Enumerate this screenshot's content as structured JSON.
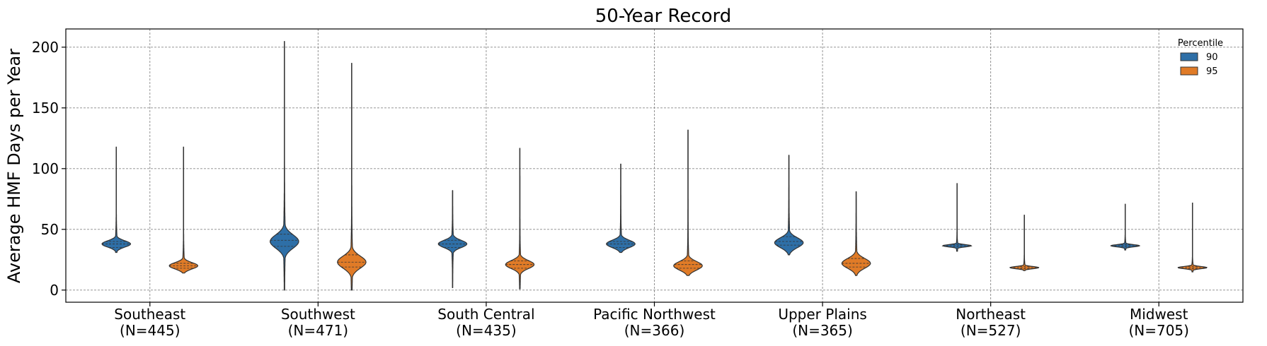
{
  "chart_data": {
    "type": "violin",
    "title": "50-Year Record",
    "xlabel": "",
    "ylabel": "Average HMF Days per Year",
    "ylim": [
      -10,
      215
    ],
    "yticks": [
      0,
      50,
      100,
      150,
      200
    ],
    "grid": true,
    "legend": {
      "title": "Percentile",
      "placement": "top-right",
      "entries": [
        {
          "label": "90",
          "color": "#2e6fa7"
        },
        {
          "label": "95",
          "color": "#e07b27"
        }
      ]
    },
    "categories": [
      {
        "line1": "Southeast",
        "line2": "(N=445)"
      },
      {
        "line1": "Southwest",
        "line2": "(N=471)"
      },
      {
        "line1": "South Central",
        "line2": "(N=435)"
      },
      {
        "line1": "Pacific Northwest",
        "line2": "(N=366)"
      },
      {
        "line1": "Upper Plains",
        "line2": "(N=365)"
      },
      {
        "line1": "Northeast",
        "line2": "(N=527)"
      },
      {
        "line1": "Midwest",
        "line2": "(N=705)"
      }
    ],
    "series": [
      {
        "name": "90",
        "color": "#2e6fa7",
        "violins": [
          {
            "min": 31,
            "max": 118,
            "q1": 35,
            "median": 38,
            "q3": 40,
            "peak": 38,
            "spread": 2.6
          },
          {
            "min": 0,
            "max": 205,
            "q1": 36,
            "median": 41,
            "q3": 46,
            "peak": 40,
            "spread": 5.5
          },
          {
            "min": 2,
            "max": 82,
            "q1": 35,
            "median": 38,
            "q3": 41,
            "peak": 38,
            "spread": 3.0
          },
          {
            "min": 31,
            "max": 104,
            "q1": 35,
            "median": 38,
            "q3": 40,
            "peak": 38,
            "spread": 3.0
          },
          {
            "min": 29,
            "max": 111,
            "q1": 37,
            "median": 40,
            "q3": 44,
            "peak": 39,
            "spread": 4.0
          },
          {
            "min": 32,
            "max": 88,
            "q1": 35.5,
            "median": 36.5,
            "q3": 37.5,
            "peak": 36.5,
            "spread": 0.9
          },
          {
            "min": 33,
            "max": 71,
            "q1": 35.5,
            "median": 36.5,
            "q3": 37.5,
            "peak": 36.5,
            "spread": 0.9
          }
        ]
      },
      {
        "name": "95",
        "color": "#e07b27",
        "violins": [
          {
            "min": 14,
            "max": 118,
            "q1": 18,
            "median": 20,
            "q3": 22,
            "peak": 20,
            "spread": 2.6
          },
          {
            "min": 0,
            "max": 187,
            "q1": 19,
            "median": 23,
            "q3": 29,
            "peak": 23,
            "spread": 5.0
          },
          {
            "min": 1,
            "max": 117,
            "q1": 18,
            "median": 21,
            "q3": 24,
            "peak": 21,
            "spread": 3.3
          },
          {
            "min": 12,
            "max": 132,
            "q1": 18,
            "median": 21,
            "q3": 24,
            "peak": 20,
            "spread": 3.5
          },
          {
            "min": 12,
            "max": 81,
            "q1": 19,
            "median": 22,
            "q3": 26,
            "peak": 22,
            "spread": 4.0
          },
          {
            "min": 16,
            "max": 62,
            "q1": 17.5,
            "median": 18.5,
            "q3": 19.5,
            "peak": 18.5,
            "spread": 0.9
          },
          {
            "min": 15,
            "max": 72,
            "q1": 17.5,
            "median": 18.5,
            "q3": 19.5,
            "peak": 18.5,
            "spread": 0.9
          }
        ]
      }
    ]
  }
}
